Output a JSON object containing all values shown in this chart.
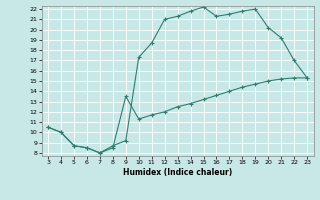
{
  "xlabel": "Humidex (Indice chaleur)",
  "line1_x": [
    3,
    4,
    5,
    6,
    7,
    8,
    9,
    10,
    11,
    12,
    13,
    14,
    15,
    16,
    17,
    18,
    19,
    20,
    21,
    22,
    23
  ],
  "line1_y": [
    10.5,
    10.0,
    8.7,
    8.5,
    8.0,
    8.7,
    9.2,
    17.3,
    18.7,
    21.0,
    21.3,
    21.8,
    22.2,
    21.3,
    21.5,
    21.8,
    22.0,
    20.2,
    19.2,
    17.0,
    15.3
  ],
  "line2_x": [
    3,
    4,
    5,
    6,
    7,
    8,
    9,
    10,
    11,
    12,
    13,
    14,
    15,
    16,
    17,
    18,
    19,
    20,
    21,
    22,
    23
  ],
  "line2_y": [
    10.5,
    10.0,
    8.7,
    8.5,
    8.0,
    8.5,
    13.5,
    11.3,
    11.7,
    12.0,
    12.5,
    12.8,
    13.2,
    13.6,
    14.0,
    14.4,
    14.7,
    15.0,
    15.2,
    15.3,
    15.3
  ],
  "line_color": "#2e7d6e",
  "bg_color": "#c8e8e8",
  "grid_color": "#aad4d4",
  "xlim": [
    3,
    23
  ],
  "ylim": [
    8,
    22
  ],
  "yticks": [
    8,
    9,
    10,
    11,
    12,
    13,
    14,
    15,
    16,
    17,
    18,
    19,
    20,
    21,
    22
  ],
  "xticks": [
    3,
    4,
    5,
    6,
    7,
    8,
    9,
    10,
    11,
    12,
    13,
    14,
    15,
    16,
    17,
    18,
    19,
    20,
    21,
    22,
    23
  ]
}
